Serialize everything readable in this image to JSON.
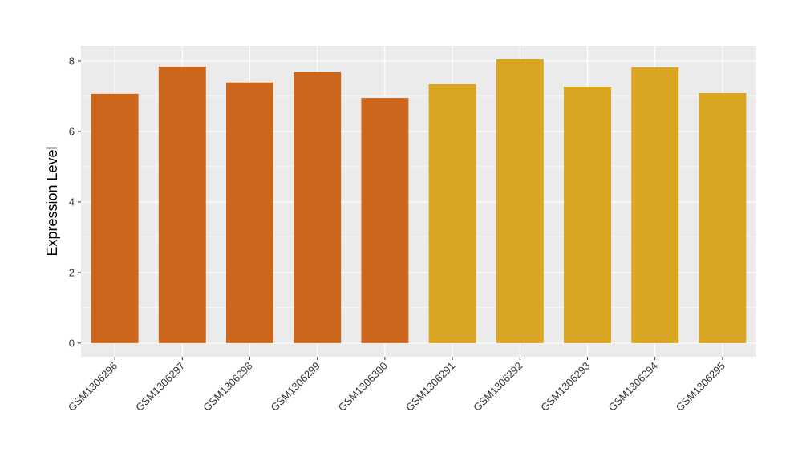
{
  "chart_data": {
    "type": "bar",
    "y_label": "Expression Level",
    "categories": [
      "GSM1306296",
      "GSM1306297",
      "GSM1306298",
      "GSM1306299",
      "GSM1306300",
      "GSM1306291",
      "GSM1306292",
      "GSM1306293",
      "GSM1306294",
      "GSM1306295"
    ],
    "values": [
      7.07,
      7.84,
      7.39,
      7.68,
      6.95,
      7.34,
      8.05,
      7.27,
      7.82,
      7.09
    ],
    "colors": [
      "#cd661d",
      "#cd661d",
      "#cd661d",
      "#cd661d",
      "#cd661d",
      "#daa520",
      "#daa520",
      "#daa520",
      "#daa520",
      "#daa520"
    ],
    "ylim": [
      -0.39,
      8.43
    ],
    "yticks": [
      0,
      2,
      4,
      6,
      8
    ],
    "grid": true
  }
}
